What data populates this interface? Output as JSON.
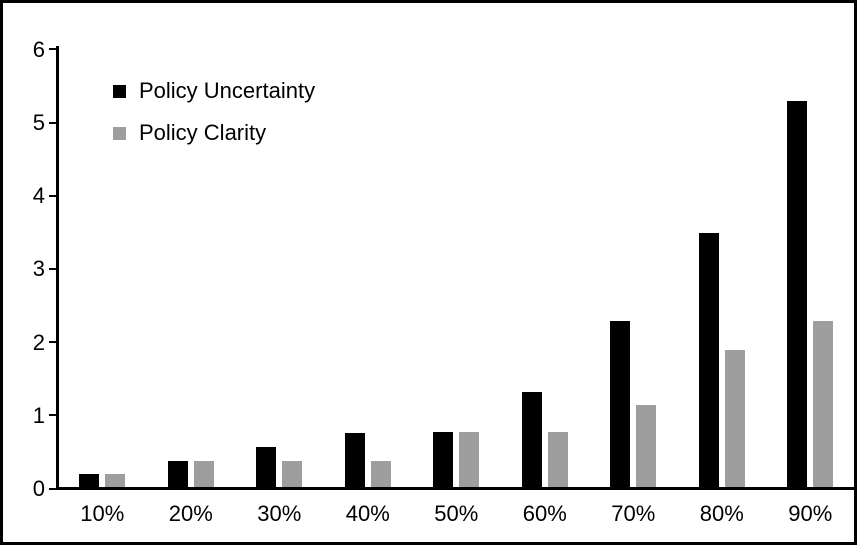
{
  "chart_data": {
    "type": "bar",
    "title": "",
    "xlabel": "",
    "ylabel": "",
    "categories": [
      "10%",
      "20%",
      "30%",
      "40%",
      "50%",
      "60%",
      "70%",
      "80%",
      "90%"
    ],
    "series": [
      {
        "name": "Policy Uncertainty",
        "color": "#000000",
        "values": [
          0.2,
          0.38,
          0.57,
          0.76,
          0.78,
          1.33,
          2.3,
          3.5,
          5.3
        ]
      },
      {
        "name": "Policy Clarity",
        "color": "#9e9e9e",
        "values": [
          0.2,
          0.38,
          0.38,
          0.38,
          0.78,
          0.78,
          1.15,
          1.9,
          2.3
        ]
      }
    ],
    "ylim": [
      0,
      6
    ],
    "yticks": [
      "0",
      "1",
      "2",
      "3",
      "4",
      "5",
      "6"
    ],
    "grid": false,
    "legend_position": "top-left",
    "frame_color": "#000000",
    "background_color": "#ffffff"
  }
}
